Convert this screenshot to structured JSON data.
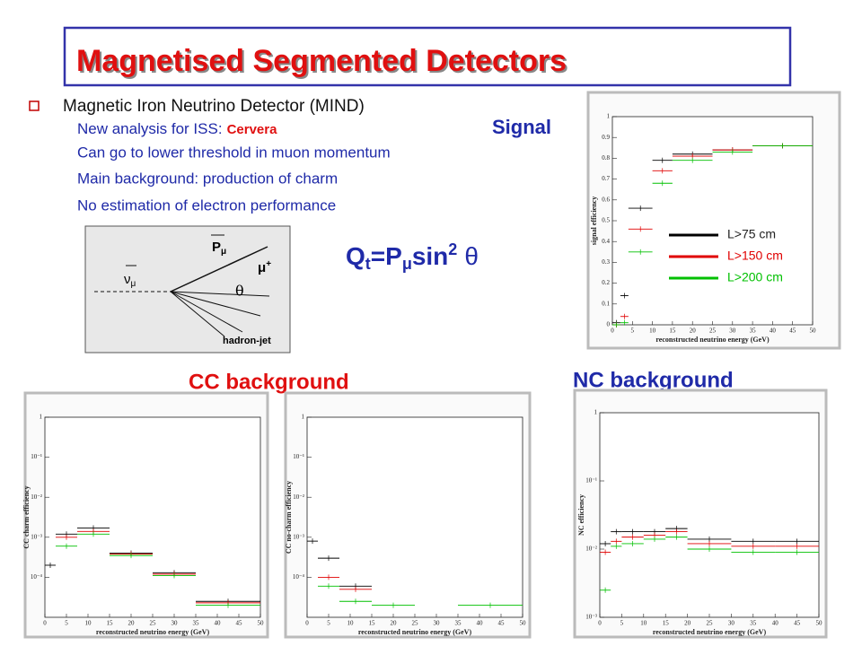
{
  "slide": {
    "title": "Magnetised Segmented Detectors",
    "bullet": "Magnetic Iron Neutrino Detector (MIND)",
    "analysis_line": {
      "text": "New analysis for ISS:",
      "highlight": "Cervera"
    },
    "lines": [
      "Can go to lower threshold in muon momentum",
      "Main background: production of charm",
      "No estimation of electron performance"
    ],
    "signal_label": "Signal",
    "cc_label": "CC background",
    "nc_label": "NC background",
    "formula": {
      "q": "Q",
      "q_sub": "t",
      "eq": "=P",
      "p_sub": "μ",
      "sin": "sin",
      "sup": "2",
      "angle": "θ"
    },
    "diagram": {
      "momentum": "P",
      "momentum_sub": "μ",
      "muon": "μ",
      "muon_sup": "+",
      "neutrino": "ν",
      "neutrino_sub": "μ",
      "angle": "θ",
      "jet": "hadron-jet"
    }
  },
  "chart_data": [
    {
      "type": "histogram",
      "ylabel": "signal efficiency",
      "xlabel": "reconstructed neutrino energy (GeV)",
      "bins": [
        0,
        2,
        4,
        10,
        15,
        25,
        35,
        50
      ],
      "xlim": [
        0,
        50
      ],
      "xticks": [
        0,
        5,
        10,
        15,
        20,
        25,
        30,
        35,
        40,
        45,
        50
      ],
      "ylim": [
        0,
        1
      ],
      "yticks": [
        0,
        0.1,
        0.2,
        0.3,
        0.4,
        0.5,
        0.6,
        0.7,
        0.8,
        0.9,
        1
      ],
      "legend": "right",
      "series": [
        {
          "name": "L>75 cm",
          "color": "#000000",
          "values": [
            0.01,
            0.14,
            0.56,
            0.79,
            0.82,
            0.84,
            0.86
          ]
        },
        {
          "name": "L>150 cm",
          "color": "#e00000",
          "values": [
            0.0,
            0.04,
            0.46,
            0.74,
            0.81,
            0.84,
            0.86
          ]
        },
        {
          "name": "L>200 cm",
          "color": "#00c000",
          "values": [
            0.0,
            0.01,
            0.35,
            0.68,
            0.79,
            0.83,
            0.86
          ]
        }
      ]
    },
    {
      "type": "histogram",
      "ylabel": "CC charm efficiency",
      "xlabel": "reconstructed neutrino energy (GeV)",
      "log": true,
      "bins": [
        0,
        2.5,
        7.5,
        15,
        25,
        35,
        50
      ],
      "xlim": [
        0,
        50
      ],
      "xticks": [
        0,
        5,
        10,
        15,
        20,
        25,
        30,
        35,
        40,
        45,
        50
      ],
      "ylim": [
        1e-05,
        1
      ],
      "yticks": [
        {
          "value": 0.0001,
          "label": "10⁻⁴"
        },
        {
          "value": 0.001,
          "label": "10⁻³"
        },
        {
          "value": 0.01,
          "label": "10⁻²"
        },
        {
          "value": 0.1,
          "label": "10⁻¹"
        },
        1
      ],
      "series": [
        {
          "color": "#000000",
          "values": [
            0.0002,
            0.0012,
            0.0017,
            0.0004,
            0.00013,
            2.5e-05
          ]
        },
        {
          "color": "#e00000",
          "values": [
            null,
            0.001,
            0.0014,
            0.00038,
            0.00012,
            2.3e-05
          ]
        },
        {
          "color": "#00c000",
          "values": [
            null,
            0.0006,
            0.0012,
            0.00035,
            0.00011,
            2e-05
          ]
        }
      ]
    },
    {
      "type": "histogram",
      "ylabel": "CC no-charm efficiency",
      "xlabel": "reconstructed neutrino energy (GeV)",
      "log": true,
      "bins": [
        0,
        2.5,
        7.5,
        15,
        25,
        35,
        50
      ],
      "xlim": [
        0,
        50
      ],
      "xticks": [
        0,
        5,
        10,
        15,
        20,
        25,
        30,
        35,
        40,
        45,
        50
      ],
      "ylim": [
        1e-05,
        1
      ],
      "yticks": [
        {
          "value": 0.0001,
          "label": "10⁻⁴"
        },
        {
          "value": 0.001,
          "label": "10⁻³"
        },
        {
          "value": 0.01,
          "label": "10⁻²"
        },
        {
          "value": 0.1,
          "label": "10⁻¹"
        },
        1
      ],
      "series": [
        {
          "color": "#000000",
          "values": [
            0.0008,
            0.0003,
            6e-05,
            null,
            null,
            null
          ]
        },
        {
          "color": "#e00000",
          "values": [
            null,
            0.0001,
            5e-05,
            null,
            null,
            null
          ]
        },
        {
          "color": "#00c000",
          "values": [
            null,
            6e-05,
            2.5e-05,
            2e-05,
            null,
            2e-05
          ]
        }
      ]
    },
    {
      "type": "histogram",
      "ylabel": "NC efficiency",
      "xlabel": "reconstructed neutrino energy (GeV)",
      "log": true,
      "bins": [
        0,
        2.5,
        5,
        10,
        15,
        20,
        30,
        40,
        50
      ],
      "xlim": [
        0,
        50
      ],
      "xticks": [
        0,
        5,
        10,
        15,
        20,
        25,
        30,
        35,
        40,
        45,
        50
      ],
      "ylim": [
        0.001,
        1
      ],
      "yticks": [
        {
          "value": 0.001,
          "label": "10⁻³"
        },
        {
          "value": 0.01,
          "label": "10⁻²"
        },
        {
          "value": 0.1,
          "label": "10⁻¹"
        },
        1
      ],
      "series": [
        {
          "color": "#000000",
          "values": [
            0.012,
            0.018,
            0.018,
            0.018,
            0.02,
            0.014,
            0.013,
            0.013
          ]
        },
        {
          "color": "#e00000",
          "values": [
            0.009,
            0.013,
            0.015,
            0.016,
            0.018,
            0.012,
            0.011,
            0.011
          ]
        },
        {
          "color": "#00c000",
          "values": [
            0.0025,
            0.011,
            0.012,
            0.014,
            0.015,
            0.01,
            0.009,
            0.009
          ]
        }
      ]
    }
  ]
}
